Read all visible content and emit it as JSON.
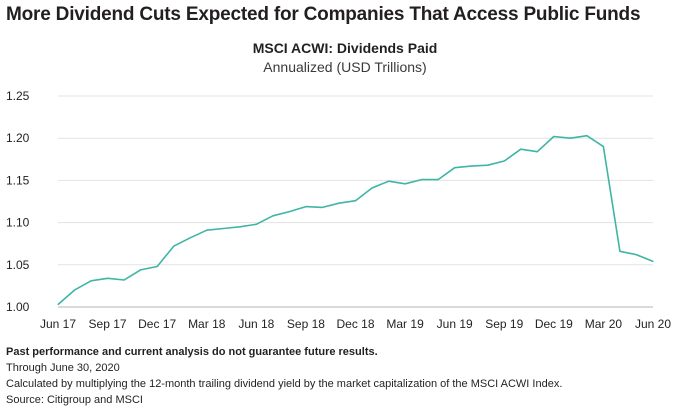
{
  "header": {
    "headline": "More Dividend Cuts Expected for Companies That Access Public Funds"
  },
  "chart_data": {
    "type": "line",
    "title": "MSCI ACWI: Dividends Paid",
    "subtitle": "Annualized (USD Trillions)",
    "xlabel": "",
    "ylabel": "",
    "ylim": [
      1.0,
      1.25
    ],
    "yticks": [
      "1.25",
      "1.20",
      "1.15",
      "1.10",
      "1.05",
      "1.00"
    ],
    "xticks": [
      "Jun 17",
      "Sep 17",
      "Dec 17",
      "Mar 18",
      "Jun 18",
      "Sep 18",
      "Dec 18",
      "Mar 19",
      "Jun 19",
      "Sep 19",
      "Dec 19",
      "Mar 20",
      "Jun 20"
    ],
    "grid": "horizontal",
    "line_color": "#3fb5a5",
    "series": [
      {
        "values": [
          1.003,
          1.02,
          1.031,
          1.034,
          1.032,
          1.044,
          1.048,
          1.072,
          1.082,
          1.091,
          1.093,
          1.095,
          1.098,
          1.108,
          1.113,
          1.119,
          1.118,
          1.123,
          1.126,
          1.141,
          1.149,
          1.146,
          1.151,
          1.151,
          1.165,
          1.167,
          1.168,
          1.173,
          1.187,
          1.184,
          1.202,
          1.2,
          1.203,
          1.19,
          1.066,
          1.062,
          1.054
        ]
      }
    ]
  },
  "footer": {
    "disclaimer": "Past performance and current analysis do not guarantee future results.",
    "through": "Through June 30, 2020",
    "method": "Calculated by multiplying the 12-month trailing dividend yield by the market capitalization of the MSCI ACWI Index.",
    "source": "Source: Citigroup and MSCI"
  }
}
